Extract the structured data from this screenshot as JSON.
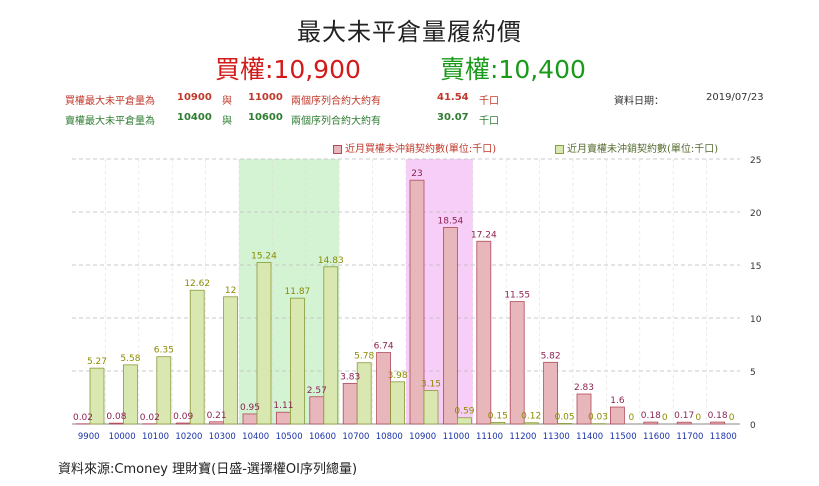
{
  "title": "最大未平倉量履約價",
  "subtitle_call": "買權:10,900",
  "subtitle_put": "賣權:10,400",
  "info": {
    "call_row": {
      "label": "買權最大未平倉量為",
      "strike1": "10900",
      "and": "與",
      "strike2": "11000",
      "text": "兩個序列合約大約有",
      "value": "41.54",
      "unit": "千口"
    },
    "put_row": {
      "label": "賣權最大未平倉量為",
      "strike1": "10400",
      "and": "與",
      "strike2": "10600",
      "text": "兩個序列合約大約有",
      "value": "30.07",
      "unit": "千口"
    },
    "date_label": "資料日期：",
    "date_value": "2019/07/23"
  },
  "source": "資料來源:Cmoney 理財寶(日盛-選擇權OI序列總量)",
  "colors": {
    "call_fill": "#e8b7bb",
    "call_stroke": "#b04a5a",
    "put_fill": "#d9e7b0",
    "put_stroke": "#8a9a3a",
    "call_label": "#8b2252",
    "put_label": "#8b8b00",
    "green_band": "#c8f0c8",
    "pink_band": "#f5c2f5"
  },
  "chart_data": {
    "type": "bar",
    "categories": [
      "9900",
      "10000",
      "10100",
      "10200",
      "10300",
      "10400",
      "10500",
      "10600",
      "10700",
      "10800",
      "10900",
      "11000",
      "11100",
      "11200",
      "11300",
      "11400",
      "11500",
      "11600",
      "11700",
      "11800"
    ],
    "series": [
      {
        "name": "近月賣權未沖銷契約數(單位:千口)",
        "values": [
          5.27,
          5.58,
          6.35,
          12.62,
          12,
          15.24,
          11.87,
          14.83,
          5.78,
          3.98,
          3.15,
          0.59,
          0.15,
          0.12,
          0.05,
          0.03,
          0,
          0,
          0,
          0
        ],
        "labels": [
          "5.27",
          "5.58",
          "6.35",
          "12.62",
          "12",
          "15.24",
          "11.87",
          "14.83",
          "5.78",
          "3.98",
          "3.15",
          "0.59",
          "0.15",
          "0.12",
          "0.05",
          "0.03",
          "0",
          "0",
          "0",
          "0"
        ]
      },
      {
        "name": "近月買權未沖銷契約數(單位:千口)",
        "values": [
          0.02,
          0.08,
          0.02,
          0.09,
          0.21,
          0.95,
          1.11,
          2.57,
          3.83,
          6.74,
          23,
          18.54,
          17.24,
          11.55,
          5.82,
          2.83,
          1.6,
          0.18,
          0.17,
          0.18
        ],
        "labels": [
          "0.02",
          "0.08",
          "0.02",
          "0.09",
          "0.21",
          "0.95",
          "1.11",
          "2.57",
          "3.83",
          "6.74",
          "23",
          "18.54",
          "17.24",
          "11.55",
          "5.82",
          "2.83",
          "1.6",
          "0.18",
          "0.17",
          "0.18"
        ]
      }
    ],
    "ylim": [
      0,
      25
    ],
    "yticks": [
      "0",
      "5",
      "10",
      "15",
      "20",
      "25"
    ],
    "highlight": {
      "put_band": [
        "10400",
        "10600"
      ],
      "call_band": [
        "10900",
        "11000"
      ]
    },
    "grid": true,
    "legend": "top"
  }
}
